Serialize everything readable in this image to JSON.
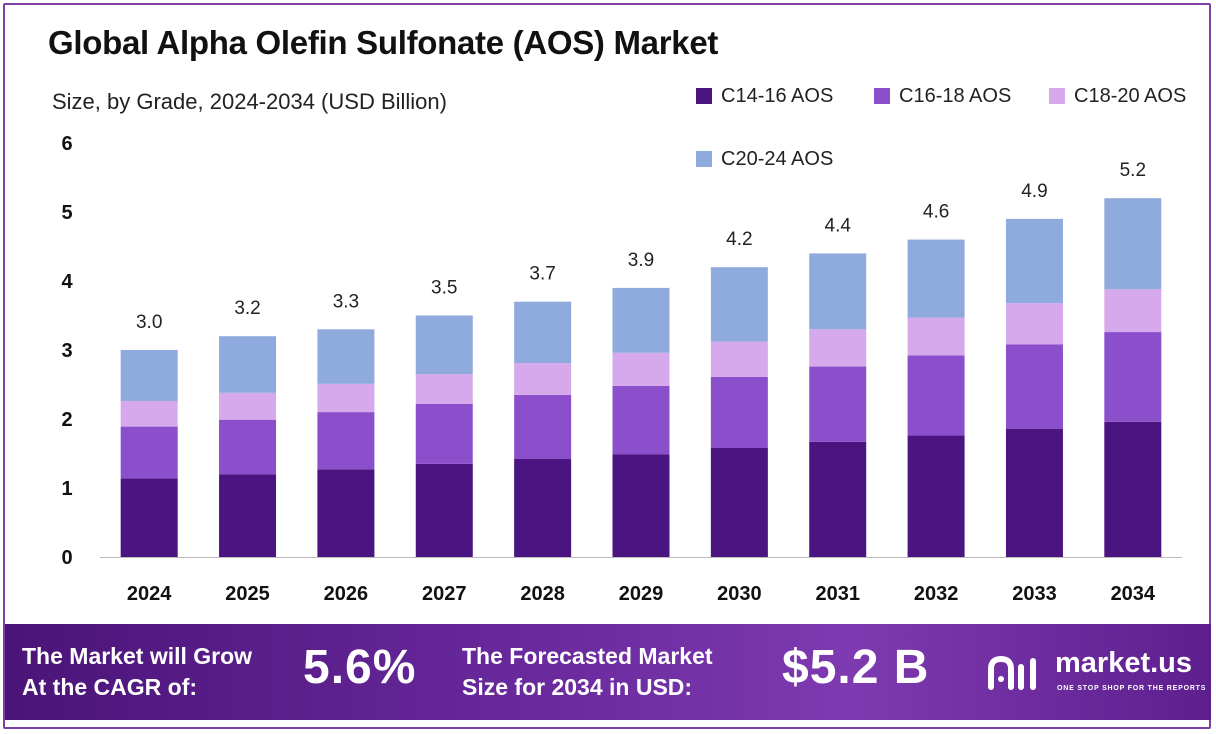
{
  "title": "Global Alpha Olefin Sulfonate (AOS) Market",
  "subtitle": "Size, by Grade, 2024-2034 (USD Billion)",
  "colors": {
    "c14": "#4a1580",
    "c16": "#8c4fcc",
    "c18": "#d6a8ec",
    "c20": "#8faadc",
    "banner": "#5e1f8e"
  },
  "chart_data": {
    "type": "bar",
    "stacked": true,
    "categories": [
      "2024",
      "2025",
      "2026",
      "2027",
      "2028",
      "2029",
      "2030",
      "2031",
      "2032",
      "2033",
      "2034"
    ],
    "series": [
      {
        "name": "C14-16 AOS",
        "values": [
          1.14,
          1.2,
          1.27,
          1.35,
          1.42,
          1.49,
          1.58,
          1.67,
          1.76,
          1.86,
          1.96
        ]
      },
      {
        "name": "C16-18 AOS",
        "values": [
          0.75,
          0.79,
          0.83,
          0.87,
          0.93,
          0.99,
          1.03,
          1.09,
          1.16,
          1.22,
          1.3
        ]
      },
      {
        "name": "C18-20 AOS",
        "values": [
          0.37,
          0.39,
          0.41,
          0.43,
          0.46,
          0.48,
          0.51,
          0.54,
          0.55,
          0.6,
          0.62
        ]
      },
      {
        "name": "C20-24 AOS",
        "values": [
          0.74,
          0.82,
          0.79,
          0.85,
          0.89,
          0.94,
          1.08,
          1.1,
          1.13,
          1.22,
          1.32
        ]
      }
    ],
    "totals": [
      "3.0",
      "3.2",
      "3.3",
      "3.5",
      "3.7",
      "3.9",
      "4.2",
      "4.4",
      "4.6",
      "4.9",
      "5.2"
    ],
    "ylim": [
      0,
      6
    ],
    "yticks": [
      "0",
      "1",
      "2",
      "3",
      "4",
      "5",
      "6"
    ],
    "xlabel": "",
    "ylabel": "",
    "legend_position": "top-right",
    "grid": false
  },
  "banner": {
    "cagr_label_line1": "The Market will Grow",
    "cagr_label_line2": "At the CAGR of:",
    "cagr_value": "5.6%",
    "forecast_label_line1": "The Forecasted Market",
    "forecast_label_line2": "Size for 2034 in USD:",
    "forecast_value": "$5.2 B",
    "brand_name": "market.us",
    "brand_tagline": "ONE STOP SHOP FOR THE REPORTS"
  }
}
